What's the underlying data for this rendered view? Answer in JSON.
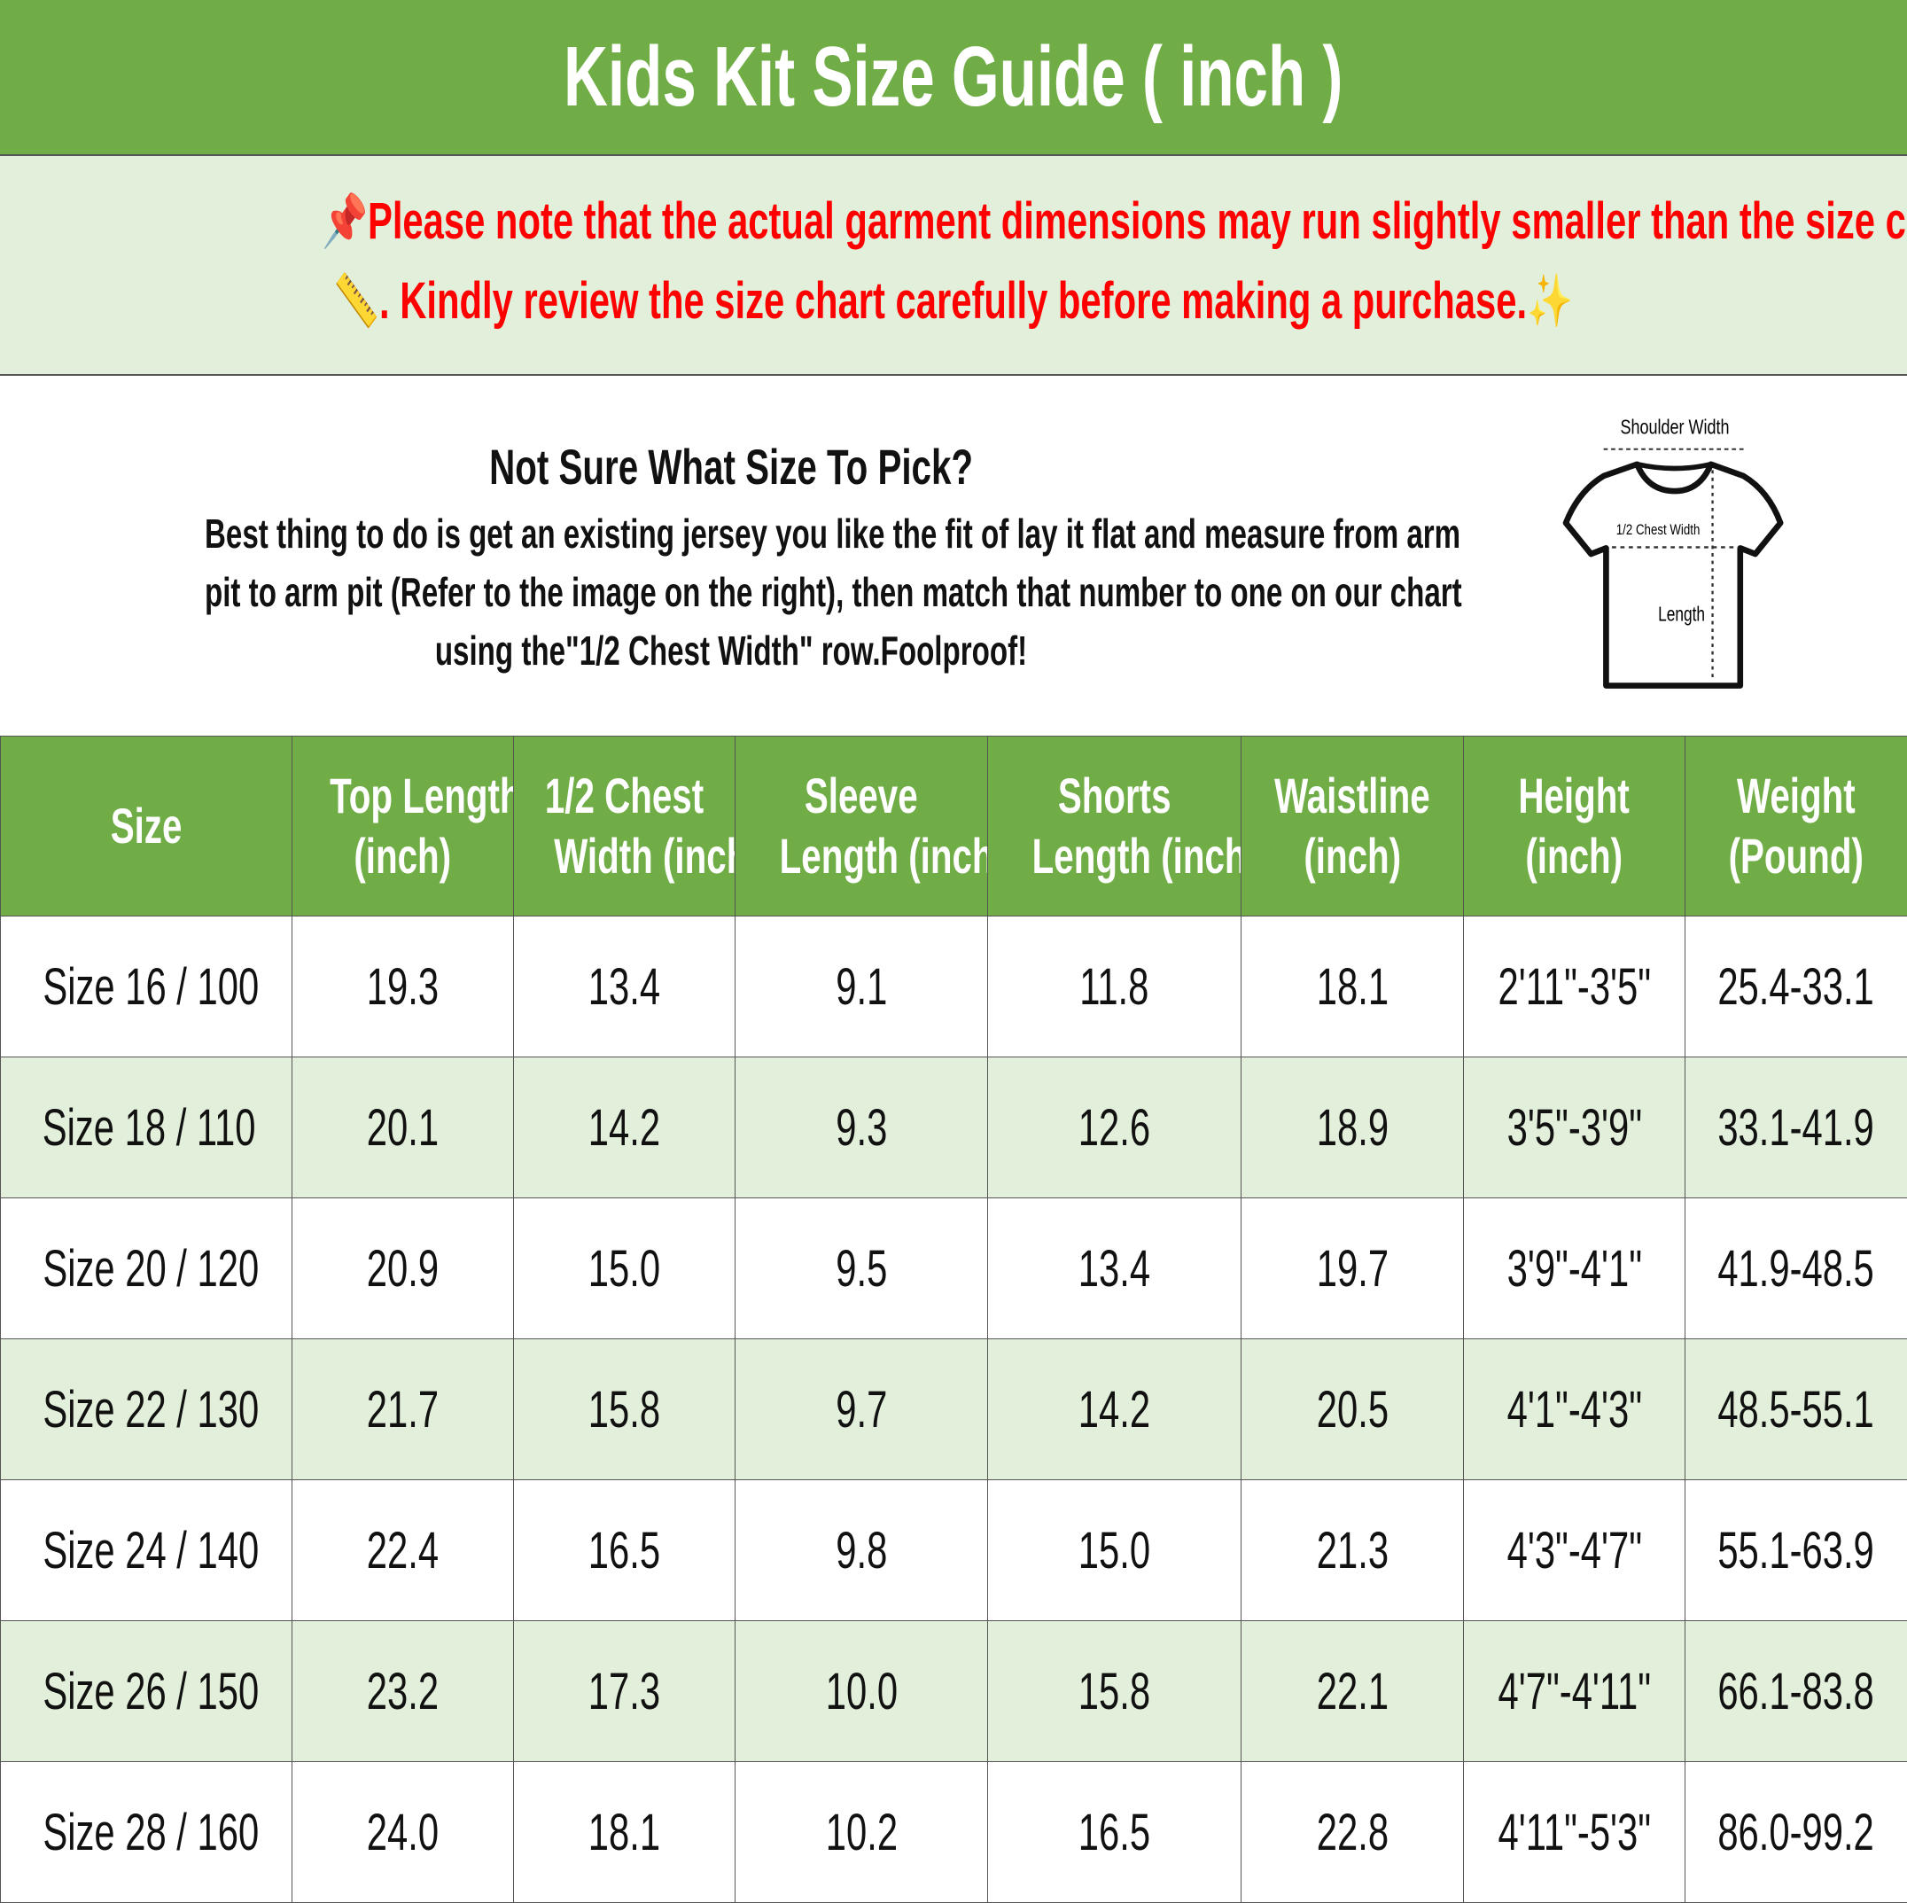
{
  "title": "Kids Kit Size Guide ( inch )",
  "notice": {
    "line1": "Please note that the actual garment dimensions may run slightly smaller than the size chart",
    "line2": ". Kindly review the size chart carefully before making a purchase.",
    "icons": [
      "pushpin-icon",
      "ruler-icon",
      "sparkles-icon"
    ],
    "color": "#FF0000"
  },
  "info": {
    "question": "Not Sure What Size To Pick?",
    "body1": "Best thing to do is get an existing jersey you like the fit of lay it flat and measure from arm",
    "body2": "pit to arm pit (Refer to the image on the right), then match that number to one on our chart",
    "body3": "using the\"1/2 Chest Width\" row.Foolproof!",
    "diagram": {
      "shoulder": "Shoulder Width",
      "chest": "1/2 Chest Width",
      "length": "Length"
    }
  },
  "colors": {
    "header": "#70AD47",
    "stripe": "#E2EFDA"
  },
  "table": {
    "headers": [
      [
        "Size",
        ""
      ],
      [
        "Top Length",
        "(inch)"
      ],
      [
        "1/2 Chest",
        "Width (inch)"
      ],
      [
        "Sleeve",
        "Length (inch)"
      ],
      [
        "Shorts",
        "Length (inch)"
      ],
      [
        "Waistline",
        "(inch)"
      ],
      [
        "Height",
        "(inch)"
      ],
      [
        "Weight",
        "(Pound)"
      ]
    ],
    "rows": [
      [
        "Size 16 / 100",
        "19.3",
        "13.4",
        "9.1",
        "11.8",
        "18.1",
        "2'11\"-3'5\"",
        "25.4-33.1"
      ],
      [
        "Size 18 / 110",
        "20.1",
        "14.2",
        "9.3",
        "12.6",
        "18.9",
        "3'5\"-3'9\"",
        "33.1-41.9"
      ],
      [
        "Size 20 / 120",
        "20.9",
        "15.0",
        "9.5",
        "13.4",
        "19.7",
        "3'9\"-4'1\"",
        "41.9-48.5"
      ],
      [
        "Size 22 / 130",
        "21.7",
        "15.8",
        "9.7",
        "14.2",
        "20.5",
        "4'1\"-4'3\"",
        "48.5-55.1"
      ],
      [
        "Size 24 / 140",
        "22.4",
        "16.5",
        "9.8",
        "15.0",
        "21.3",
        "4'3\"-4'7\"",
        "55.1-63.9"
      ],
      [
        "Size 26 / 150",
        "23.2",
        "17.3",
        "10.0",
        "15.8",
        "22.1",
        "4'7\"-4'11\"",
        "66.1-83.8"
      ],
      [
        "Size 28 / 160",
        "24.0",
        "18.1",
        "10.2",
        "16.5",
        "22.8",
        "4'11\"-5'3\"",
        "86.0-99.2"
      ]
    ]
  }
}
